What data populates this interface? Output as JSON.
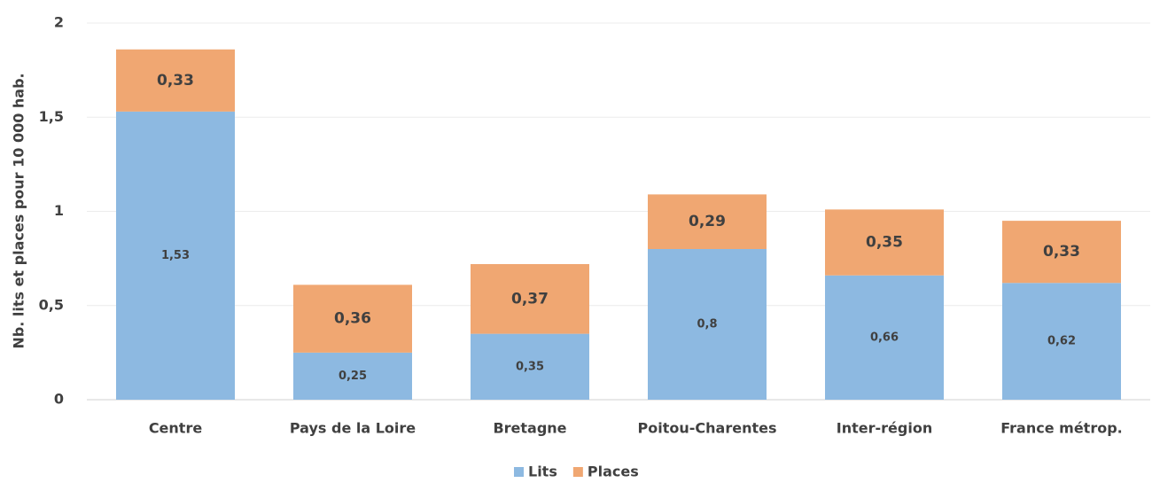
{
  "chart_data": {
    "type": "stacked_bar",
    "y_label": "Nb. lits et places pour 10 000 hab.",
    "categories": [
      "Centre",
      "Pays de la Loire",
      "Bretagne",
      "Poitou-Charentes",
      "Inter-région",
      "France métrop."
    ],
    "series": [
      {
        "name": "Lits",
        "color": "#8db9e1",
        "values": [
          1.53,
          0.25,
          0.35,
          0.8,
          0.66,
          0.62
        ],
        "value_labels": [
          "1,53",
          "0,25",
          "0,35",
          "0,8",
          "0,66",
          "0,62"
        ]
      },
      {
        "name": "Places",
        "color": "#f0a772",
        "values": [
          0.33,
          0.36,
          0.37,
          0.29,
          0.35,
          0.33
        ],
        "value_labels": [
          "0,33",
          "0,36",
          "0,37",
          "0,29",
          "0,35",
          "0,33"
        ]
      }
    ],
    "ylim": [
      0,
      2
    ],
    "yticks": [
      0,
      {
        "value": 0.5,
        "label": "0,5"
      },
      1,
      {
        "value": 1.5,
        "label": "1,5"
      },
      2
    ],
    "grid": true
  }
}
